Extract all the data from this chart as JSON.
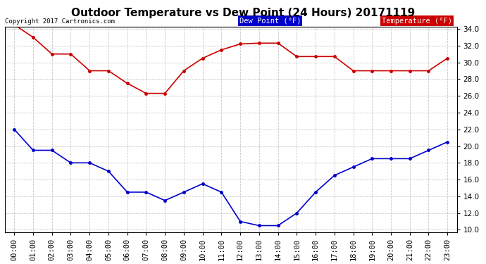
{
  "title": "Outdoor Temperature vs Dew Point (24 Hours) 20171119",
  "copyright": "Copyright 2017 Cartronics.com",
  "legend_dew": "Dew Point (°F)",
  "legend_temp": "Temperature (°F)",
  "hours": [
    "00:00",
    "01:00",
    "02:00",
    "03:00",
    "04:00",
    "05:00",
    "06:00",
    "07:00",
    "08:00",
    "09:00",
    "10:00",
    "11:00",
    "12:00",
    "13:00",
    "14:00",
    "15:00",
    "16:00",
    "17:00",
    "18:00",
    "19:00",
    "20:00",
    "21:00",
    "22:00",
    "23:00"
  ],
  "temperature": [
    34.5,
    33.0,
    31.0,
    31.0,
    29.0,
    29.0,
    27.5,
    26.3,
    26.3,
    29.0,
    30.5,
    31.5,
    32.2,
    32.3,
    32.3,
    30.7,
    30.7,
    30.7,
    29.0,
    29.0,
    29.0,
    29.0,
    29.0,
    30.5
  ],
  "dew_point": [
    22.0,
    19.5,
    19.5,
    18.0,
    18.0,
    17.0,
    14.5,
    14.5,
    13.5,
    14.5,
    15.5,
    14.5,
    11.0,
    10.5,
    10.5,
    12.0,
    14.5,
    16.5,
    17.5,
    18.5,
    18.5,
    18.5,
    19.5,
    20.5
  ],
  "temp_color": "#cc0000",
  "dew_color": "#0000cc",
  "ylim_min": 10.0,
  "ylim_max": 34.0,
  "yticks": [
    10.0,
    12.0,
    14.0,
    16.0,
    18.0,
    20.0,
    22.0,
    24.0,
    26.0,
    28.0,
    30.0,
    32.0,
    34.0
  ],
  "bg_color": "#ffffff",
  "grid_color": "#bbbbbb",
  "title_fontsize": 11,
  "tick_fontsize": 7.5,
  "legend_dew_bg": "#0000cc",
  "legend_temp_bg": "#cc0000"
}
